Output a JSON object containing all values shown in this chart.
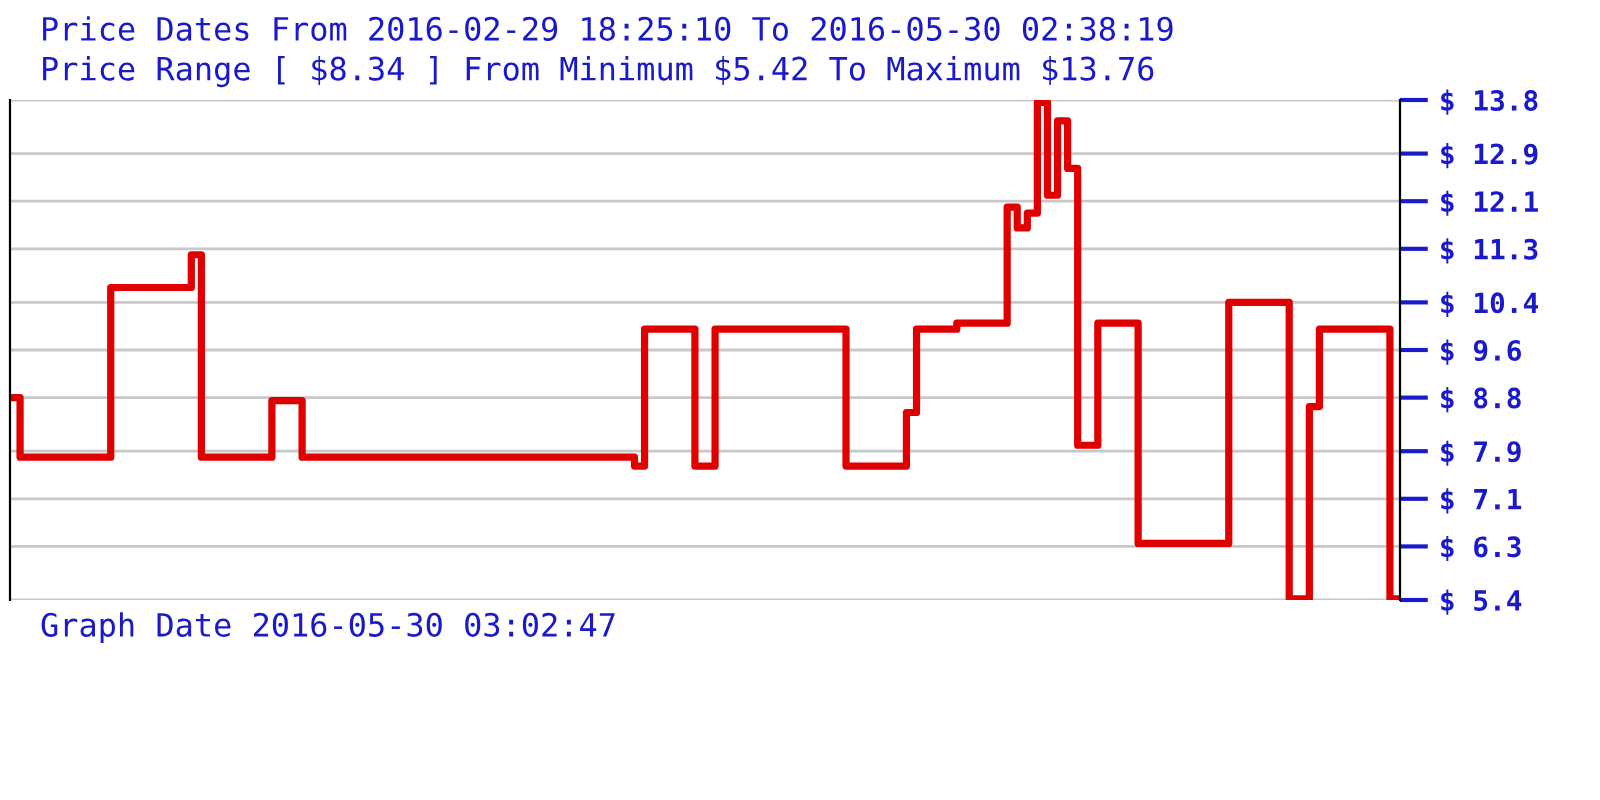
{
  "chart_data": {
    "type": "step",
    "title": "Price Dates From 2016-02-29 18:25:10 To 2016-05-30 02:38:19",
    "subtitle": "Price Range [ $8.34 ] From Minimum $5.42 To Maximum $13.76",
    "annotations": [
      "Graph Date 2016-05-30 03:02:47"
    ],
    "categories": [
      null,
      null,
      null,
      null,
      null,
      null,
      null,
      null,
      null,
      null,
      null,
      null,
      null,
      null,
      null,
      null,
      null,
      null,
      null,
      null,
      null,
      null,
      null,
      null,
      null,
      null,
      null,
      null,
      null,
      null,
      null,
      null,
      null,
      null,
      null,
      null,
      null,
      null,
      null,
      null,
      null,
      null,
      null,
      null,
      null,
      null,
      null,
      null,
      null,
      null,
      null,
      null,
      null,
      null,
      null,
      null,
      null,
      null,
      null,
      null,
      null,
      null,
      null,
      null,
      null,
      null,
      null,
      null,
      null,
      null,
      null,
      null,
      null,
      null,
      null,
      null,
      null,
      null,
      null,
      null,
      null,
      null,
      null,
      null,
      null,
      null,
      null,
      null,
      null,
      null,
      null,
      null,
      null,
      null,
      null,
      null,
      null,
      null,
      null,
      null,
      null,
      null,
      null,
      null,
      null,
      null,
      null,
      null,
      null,
      null,
      null,
      null,
      null,
      null,
      null,
      null,
      null,
      null,
      null,
      null,
      null,
      null,
      null,
      null,
      null,
      null,
      null,
      null,
      null,
      null,
      null,
      null,
      null,
      null,
      null,
      null,
      null,
      null,
      null
    ],
    "series": [
      {
        "color": "#e00000",
        "values": [
          8.8,
          7.8,
          7.8,
          7.8,
          7.8,
          7.8,
          7.8,
          7.8,
          7.8,
          7.8,
          10.65,
          10.65,
          10.65,
          10.65,
          10.65,
          10.65,
          10.65,
          10.65,
          11.2,
          7.8,
          7.8,
          7.8,
          7.8,
          7.8,
          7.8,
          7.8,
          8.75,
          8.75,
          8.75,
          7.8,
          7.8,
          7.8,
          7.8,
          7.8,
          7.8,
          7.8,
          7.8,
          7.8,
          7.8,
          7.8,
          7.8,
          7.8,
          7.8,
          7.8,
          7.8,
          7.8,
          7.8,
          7.8,
          7.8,
          7.8,
          7.8,
          7.8,
          7.8,
          7.8,
          7.8,
          7.8,
          7.8,
          7.8,
          7.8,
          7.8,
          7.8,
          7.8,
          7.65,
          9.95,
          9.95,
          9.95,
          9.95,
          9.95,
          7.65,
          7.65,
          9.95,
          9.95,
          9.95,
          9.95,
          9.95,
          9.95,
          9.95,
          9.95,
          9.95,
          9.95,
          9.95,
          9.95,
          9.95,
          7.65,
          7.65,
          7.65,
          7.65,
          7.65,
          7.65,
          8.55,
          9.95,
          9.95,
          9.95,
          9.95,
          10.05,
          10.05,
          10.05,
          10.05,
          10.05,
          12.0,
          11.65,
          11.9,
          13.76,
          12.2,
          13.45,
          12.65,
          8.0,
          8.0,
          10.05,
          10.05,
          10.05,
          10.05,
          6.35,
          6.35,
          6.35,
          6.35,
          6.35,
          6.35,
          6.35,
          6.35,
          6.35,
          10.4,
          10.4,
          10.4,
          10.4,
          10.4,
          10.4,
          5.42,
          5.42,
          8.65,
          9.95,
          9.95,
          9.95,
          9.95,
          9.95,
          9.95,
          9.95,
          5.42,
          5.42
        ]
      }
    ],
    "ylim": [
      5.4,
      13.8
    ],
    "yticks": [
      {
        "value": 13.8,
        "label": "$ 13.8"
      },
      {
        "value": 12.9,
        "label": "$ 12.9"
      },
      {
        "value": 12.1,
        "label": "$ 12.1"
      },
      {
        "value": 11.3,
        "label": "$ 11.3"
      },
      {
        "value": 10.4,
        "label": "$ 10.4"
      },
      {
        "value": 9.6,
        "label": "$ 9.6"
      },
      {
        "value": 8.8,
        "label": "$ 8.8"
      },
      {
        "value": 7.9,
        "label": "$ 7.9"
      },
      {
        "value": 7.1,
        "label": "$ 7.1"
      },
      {
        "value": 6.3,
        "label": "$ 6.3"
      },
      {
        "value": 5.4,
        "label": "$ 5.4"
      }
    ],
    "tick_labels": "y",
    "grid": "y",
    "line_style": "solid",
    "marker": "none"
  }
}
